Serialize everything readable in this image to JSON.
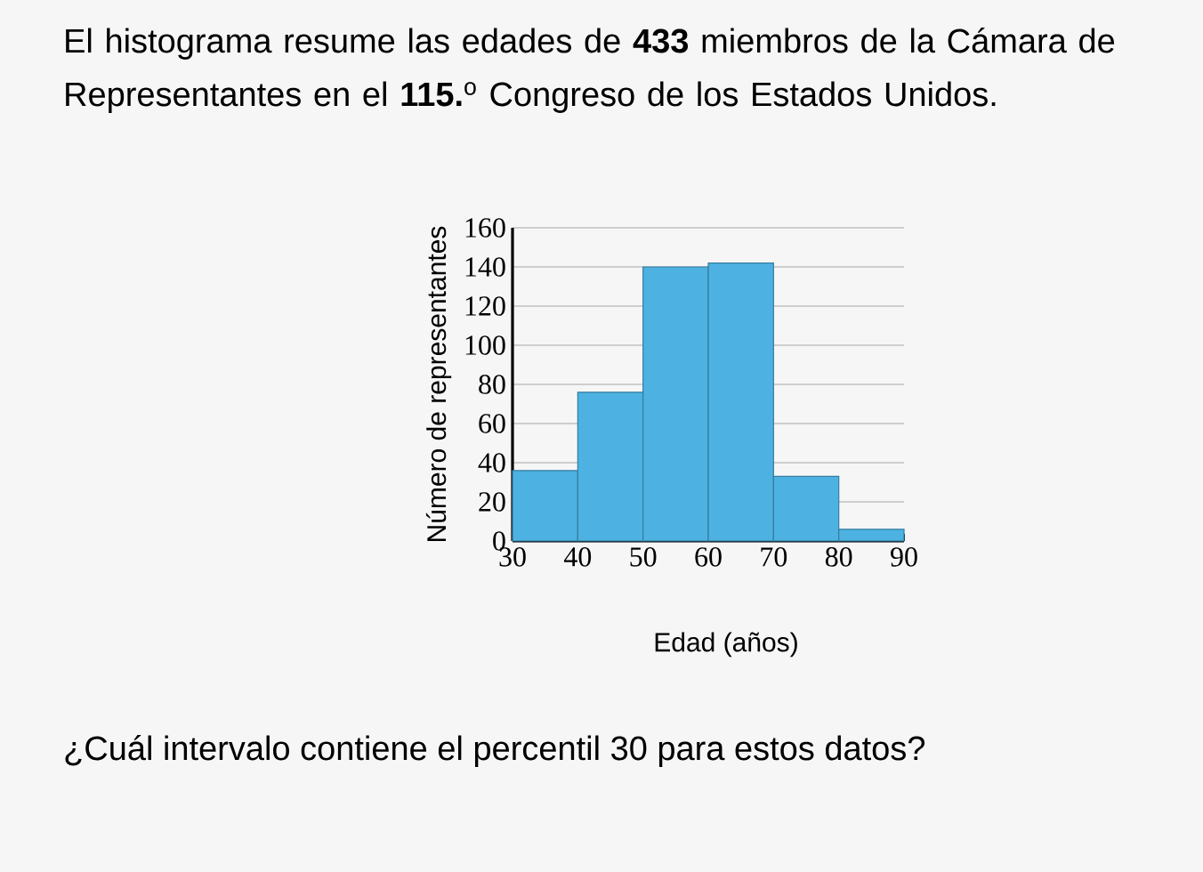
{
  "chart_data": {
    "type": "histogram",
    "title": "El histograma resume las edades de **433** miembros de la Cámara de Representantes en el **115.**$^{o}$ Congreso de los Estados Unidos.",
    "xlabel": "Edad (años)",
    "ylabel": "Número de representantes",
    "bins": [
      30,
      40,
      50,
      60,
      70,
      80,
      90
    ],
    "values": [
      36,
      76,
      140,
      142,
      33,
      6
    ],
    "color": "#4db2e2",
    "xlim": [
      30,
      90
    ],
    "xticks": [
      30,
      40,
      50,
      60,
      70,
      80,
      90
    ],
    "ylim": [
      0,
      160
    ],
    "yticks": [
      0,
      20,
      40,
      60,
      80,
      100,
      120,
      140,
      160
    ],
    "grid": "y",
    "annotations": [
      "¿Cuál intervalo contiene el percentil 30 para estos datos?"
    ]
  }
}
